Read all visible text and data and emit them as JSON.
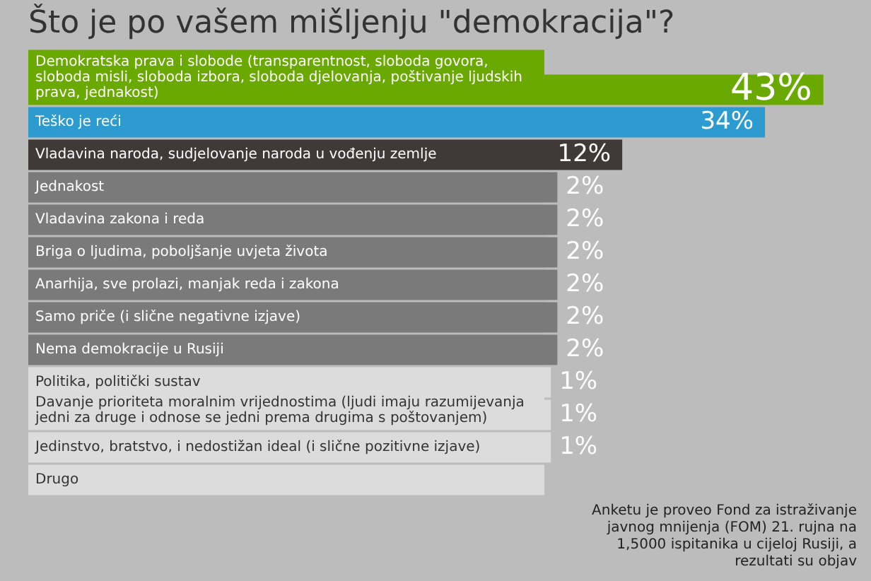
{
  "chart_data": {
    "type": "bar",
    "orientation": "horizontal",
    "title": "Što je po vašem mišljenju \"demokracija\"?",
    "categories": [
      "Demokratska prava i slobode (transparentnost, sloboda govora, sloboda misli, sloboda izbora, sloboda djelovanja, poštivanje ljudskih prava, jednakost)",
      "Teško je reći",
      "Vladavina naroda, sudjelovanje naroda u vođenju zemlje",
      "Jednakost",
      "Vladavina zakona i reda",
      "Briga o ljudima, poboljšanje uvjeta života",
      "Anarhija, sve prolazi, manjak reda i zakona",
      "Samo priče (i slične negativne izjave)",
      "Nema demokracije u Rusiji",
      "Politika, politički sustav",
      "Davanje prioriteta moralnim vrijednostima (ljudi imaju razumijevanja jedni za druge i odnose se jedni prema drugima s poštovanjem)",
      "Jedinstvo, bratstvo, i nedostižan ideal (i slične pozitivne izjave)",
      "Drugo"
    ],
    "values": [
      43,
      34,
      12,
      2,
      2,
      2,
      2,
      2,
      2,
      1,
      1,
      1,
      null
    ],
    "value_labels": [
      "43%",
      "34%",
      "12%",
      "2%",
      "2%",
      "2%",
      "2%",
      "2%",
      "2%",
      "1%",
      "1%",
      "1%",
      null
    ],
    "colors": [
      "#6aaa00",
      "#2e9bd0",
      "#3f3a38",
      "#7a7a7a",
      "#7a7a7a",
      "#7a7a7a",
      "#7a7a7a",
      "#7a7a7a",
      "#7a7a7a",
      "#dcdcdc",
      "#dcdcdc",
      "#dcdcdc",
      "#dcdcdc"
    ],
    "annotations": [
      "Anketu je proveo Fond za istraživanje javnog mnijenja (FOM) 21. rujna na 1,5000 ispitanika u cijeloj Rusiji, a rezultati su objav"
    ],
    "legend": false
  }
}
